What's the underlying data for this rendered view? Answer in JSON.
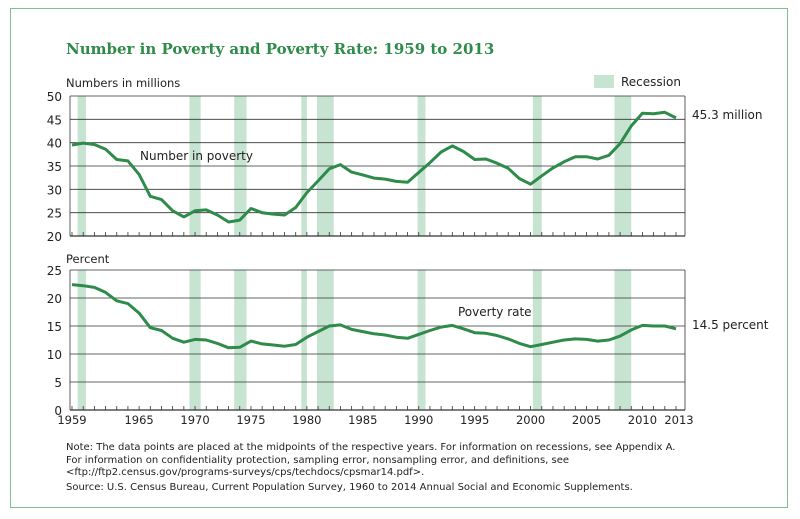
{
  "title": "Number in Poverty and Poverty Rate: 1959 to 2013",
  "colors": {
    "line": "#2e8b4a",
    "recession": "#c7e3d1",
    "title": "#2e8b4a",
    "frame": "#7fc08f"
  },
  "legend": {
    "label": "Recession",
    "placement": "top-right"
  },
  "notes": {
    "line1": "Note: The data points are placed at the midpoints of the respective years. For information on recessions, see Appendix A.",
    "line2": "For information on confidentiality protection, sampling error, nonsampling error, and definitions, see",
    "line3": "<ftp://ftp2.census.gov/programs-surveys/cps/techdocs/cpsmar14.pdf>.",
    "source": "Source: U.S. Census Bureau, Current Population Survey, 1960 to 2014 Annual Social and Economic Supplements."
  },
  "chart_data": [
    {
      "type": "line",
      "ylabel": "Numbers in millions",
      "ylim": [
        20,
        50
      ],
      "yticks": [
        20,
        25,
        30,
        35,
        40,
        45,
        50
      ],
      "xlim": [
        1959,
        2013
      ],
      "grid": true,
      "series_label": "Number in poverty",
      "end_label": "45.3 million",
      "x": [
        1959,
        1960,
        1961,
        1962,
        1963,
        1964,
        1965,
        1966,
        1967,
        1968,
        1969,
        1970,
        1971,
        1972,
        1973,
        1974,
        1975,
        1976,
        1977,
        1978,
        1979,
        1980,
        1981,
        1982,
        1983,
        1984,
        1985,
        1986,
        1987,
        1988,
        1989,
        1990,
        1991,
        1992,
        1993,
        1994,
        1995,
        1996,
        1997,
        1998,
        1999,
        2000,
        2001,
        2002,
        2003,
        2004,
        2005,
        2006,
        2007,
        2008,
        2009,
        2010,
        2011,
        2012,
        2013
      ],
      "values": [
        39.5,
        39.9,
        39.6,
        38.6,
        36.4,
        36.1,
        33.2,
        28.5,
        27.8,
        25.4,
        24.1,
        25.4,
        25.6,
        24.5,
        23.0,
        23.4,
        25.9,
        25.0,
        24.7,
        24.5,
        26.1,
        29.3,
        31.8,
        34.4,
        35.3,
        33.7,
        33.1,
        32.4,
        32.2,
        31.7,
        31.5,
        33.6,
        35.7,
        38.0,
        39.3,
        38.1,
        36.4,
        36.5,
        35.6,
        34.5,
        32.3,
        31.1,
        32.9,
        34.6,
        35.9,
        37.0,
        37.0,
        36.5,
        37.3,
        39.8,
        43.6,
        46.3,
        46.2,
        46.5,
        45.3
      ]
    },
    {
      "type": "line",
      "ylabel": "Percent",
      "ylim": [
        0,
        25
      ],
      "yticks": [
        0,
        5,
        10,
        15,
        20,
        25
      ],
      "xlim": [
        1959,
        2013
      ],
      "xticks": [
        "1959",
        "1965",
        "1970",
        "1975",
        "1980",
        "1985",
        "1990",
        "1995",
        "2000",
        "2005",
        "2010",
        "2013"
      ],
      "grid": true,
      "series_label": "Poverty rate",
      "end_label": "14.5 percent",
      "x": [
        1959,
        1960,
        1961,
        1962,
        1963,
        1964,
        1965,
        1966,
        1967,
        1968,
        1969,
        1970,
        1971,
        1972,
        1973,
        1974,
        1975,
        1976,
        1977,
        1978,
        1979,
        1980,
        1981,
        1982,
        1983,
        1984,
        1985,
        1986,
        1987,
        1988,
        1989,
        1990,
        1991,
        1992,
        1993,
        1994,
        1995,
        1996,
        1997,
        1998,
        1999,
        2000,
        2001,
        2002,
        2003,
        2004,
        2005,
        2006,
        2007,
        2008,
        2009,
        2010,
        2011,
        2012,
        2013
      ],
      "values": [
        22.4,
        22.2,
        21.9,
        21.0,
        19.5,
        19.0,
        17.3,
        14.7,
        14.2,
        12.8,
        12.1,
        12.6,
        12.5,
        11.9,
        11.1,
        11.2,
        12.3,
        11.8,
        11.6,
        11.4,
        11.7,
        13.0,
        14.0,
        15.0,
        15.2,
        14.4,
        14.0,
        13.6,
        13.4,
        13.0,
        12.8,
        13.5,
        14.2,
        14.8,
        15.1,
        14.5,
        13.8,
        13.7,
        13.3,
        12.7,
        11.9,
        11.3,
        11.7,
        12.1,
        12.5,
        12.7,
        12.6,
        12.3,
        12.5,
        13.2,
        14.3,
        15.1,
        15.0,
        15.0,
        14.5
      ]
    }
  ],
  "recessions": [
    [
      1959.5,
      1960.25
    ],
    [
      1969.5,
      1970.5
    ],
    [
      1973.5,
      1974.6
    ],
    [
      1979.5,
      1980.0
    ],
    [
      1980.9,
      1982.4
    ],
    [
      1989.9,
      1990.6
    ],
    [
      2000.2,
      2001.0
    ],
    [
      2007.5,
      2009.0
    ]
  ]
}
